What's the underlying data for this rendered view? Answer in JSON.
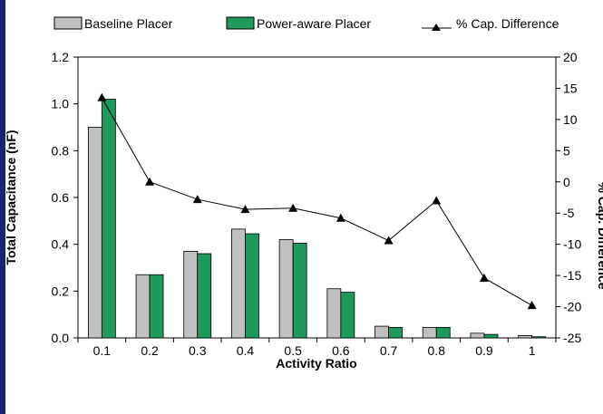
{
  "chart_data": {
    "type": "bar",
    "categories": [
      "0.1",
      "0.2",
      "0.3",
      "0.4",
      "0.5",
      "0.6",
      "0.7",
      "0.8",
      "0.9",
      "1"
    ],
    "series": [
      {
        "name": "Baseline Placer",
        "values": [
          0.9,
          0.27,
          0.37,
          0.465,
          0.42,
          0.21,
          0.05,
          0.045,
          0.02,
          0.01
        ],
        "color": "#c0c0c0"
      },
      {
        "name": "Power-aware Placer",
        "values": [
          1.02,
          0.27,
          0.36,
          0.445,
          0.405,
          0.195,
          0.045,
          0.045,
          0.015,
          0.005
        ],
        "color": "#1e9a5c"
      }
    ],
    "line_series": {
      "name": "% Cap. Difference",
      "values": [
        13.5,
        0,
        -2.8,
        -4.4,
        -4.2,
        -5.8,
        -9.4,
        -3.0,
        -15.4,
        -19.8
      ],
      "axis": "right",
      "color": "#000000"
    },
    "xlabel": "Activity Ratio",
    "ylabel": "Total Capacitance (nF)",
    "y2label": "% Cap. Difference",
    "ylim": [
      0,
      1.2
    ],
    "y2lim": [
      -25,
      20
    ],
    "yticks": [
      "0.0",
      "0.2",
      "0.4",
      "0.6",
      "0.8",
      "1.0",
      "1.2"
    ],
    "y2ticks": [
      "-25",
      "-20",
      "-15",
      "-10",
      "-5",
      "0",
      "5",
      "10",
      "15",
      "20"
    ],
    "legend": [
      {
        "label": "Baseline Placer",
        "icon": "gray-bar-swatch"
      },
      {
        "label": "Power-aware Placer",
        "icon": "green-bar-swatch"
      },
      {
        "label": "% Cap. Difference",
        "icon": "triangle-line-marker"
      }
    ],
    "legend_position": "top",
    "grid": false
  }
}
